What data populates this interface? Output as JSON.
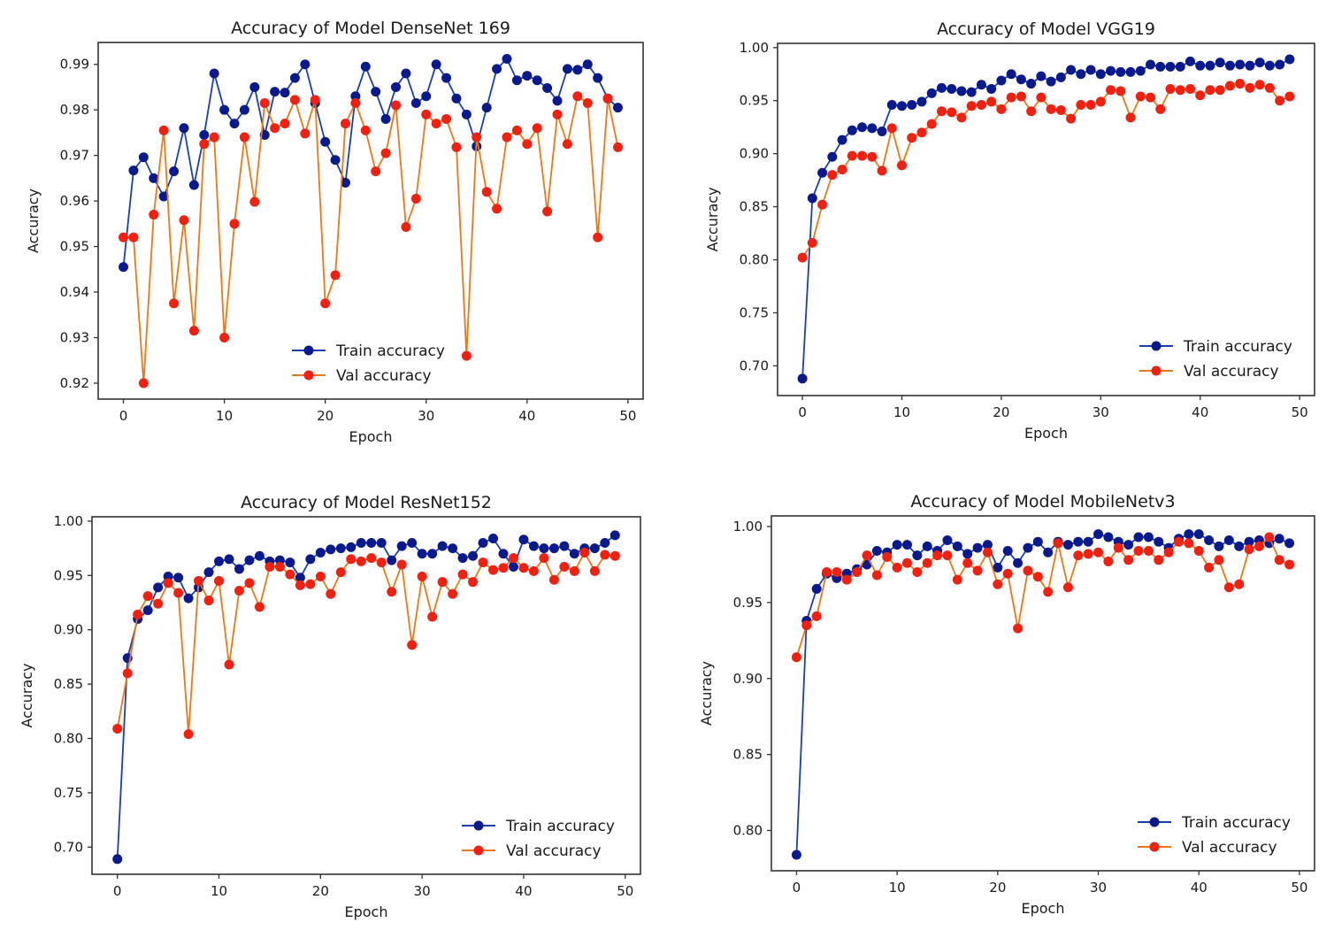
{
  "figure": {
    "colors": {
      "train_line": "#1a3fa8",
      "train_marker": "#0a1a8c",
      "val_line": "#e8781a",
      "val_marker": "#f22010"
    }
  },
  "chart_data": [
    {
      "type": "line",
      "title": "Accuracy of Model DenseNet 169",
      "xlabel": "Epoch",
      "ylabel": "Accuracy",
      "xlim": [
        -2.5,
        51.5
      ],
      "ylim": [
        0.9165,
        0.9948
      ],
      "xticks": [
        0,
        10,
        20,
        30,
        40,
        50
      ],
      "yticks": [
        0.92,
        0.93,
        0.94,
        0.95,
        0.96,
        0.97,
        0.98,
        0.99
      ],
      "ytick_labels": [
        "0.92",
        "0.93",
        "0.94",
        "0.95",
        "0.96",
        "0.97",
        "0.98",
        "0.99"
      ],
      "legend_position": "lower-center",
      "grid": false,
      "series": [
        {
          "name": "Train accuracy",
          "values": [
            0.9455,
            0.9667,
            0.9696,
            0.965,
            0.961,
            0.9665,
            0.976,
            0.9635,
            0.9745,
            0.988,
            0.98,
            0.977,
            0.98,
            0.985,
            0.9745,
            0.984,
            0.9838,
            0.987,
            0.99,
            0.9815,
            0.973,
            0.969,
            0.964,
            0.983,
            0.9895,
            0.984,
            0.978,
            0.985,
            0.988,
            0.9815,
            0.983,
            0.99,
            0.987,
            0.9825,
            0.979,
            0.972,
            0.9805,
            0.989,
            0.9912,
            0.9865,
            0.9875,
            0.9865,
            0.9848,
            0.982,
            0.989,
            0.9888,
            0.99,
            0.987,
            0.9825,
            0.9805
          ]
        },
        {
          "name": "Val accuracy",
          "values": [
            0.952,
            0.952,
            0.92,
            0.957,
            0.9755,
            0.9375,
            0.9558,
            0.9315,
            0.9725,
            0.974,
            0.93,
            0.955,
            0.974,
            0.9598,
            0.9815,
            0.976,
            0.977,
            0.9822,
            0.9748,
            0.9822,
            0.9375,
            0.9437,
            0.977,
            0.9815,
            0.9755,
            0.9665,
            0.9705,
            0.981,
            0.9543,
            0.9605,
            0.979,
            0.977,
            0.978,
            0.9718,
            0.926,
            0.974,
            0.962,
            0.9583,
            0.974,
            0.9755,
            0.9725,
            0.976,
            0.9577,
            0.979,
            0.9725,
            0.983,
            0.9815,
            0.952,
            0.9825,
            0.9718
          ]
        }
      ]
    },
    {
      "type": "line",
      "title": "Accuracy of Model VGG19",
      "xlabel": "Epoch",
      "ylabel": "Accuracy",
      "xlim": [
        -2.5,
        51.5
      ],
      "ylim": [
        0.672,
        1.004
      ],
      "xticks": [
        0,
        10,
        20,
        30,
        40,
        50
      ],
      "yticks": [
        0.7,
        0.75,
        0.8,
        0.85,
        0.9,
        0.95,
        1.0
      ],
      "ytick_labels": [
        "0.70",
        "0.75",
        "0.80",
        "0.85",
        "0.90",
        "0.95",
        "1.00"
      ],
      "legend_position": "lower-right",
      "grid": false,
      "series": [
        {
          "name": "Train accuracy",
          "values": [
            0.688,
            0.858,
            0.882,
            0.897,
            0.913,
            0.922,
            0.925,
            0.924,
            0.921,
            0.946,
            0.945,
            0.946,
            0.949,
            0.957,
            0.962,
            0.961,
            0.959,
            0.958,
            0.965,
            0.961,
            0.969,
            0.975,
            0.97,
            0.966,
            0.973,
            0.968,
            0.972,
            0.979,
            0.975,
            0.979,
            0.975,
            0.978,
            0.977,
            0.977,
            0.978,
            0.984,
            0.982,
            0.982,
            0.982,
            0.987,
            0.983,
            0.983,
            0.986,
            0.983,
            0.984,
            0.983,
            0.986,
            0.983,
            0.984,
            0.989
          ]
        },
        {
          "name": "Val accuracy",
          "values": [
            0.802,
            0.816,
            0.852,
            0.88,
            0.885,
            0.898,
            0.898,
            0.897,
            0.884,
            0.924,
            0.889,
            0.915,
            0.92,
            0.928,
            0.94,
            0.939,
            0.934,
            0.945,
            0.946,
            0.949,
            0.942,
            0.953,
            0.954,
            0.94,
            0.953,
            0.942,
            0.941,
            0.933,
            0.946,
            0.946,
            0.949,
            0.96,
            0.959,
            0.934,
            0.954,
            0.953,
            0.942,
            0.961,
            0.96,
            0.961,
            0.955,
            0.96,
            0.96,
            0.964,
            0.966,
            0.962,
            0.965,
            0.962,
            0.95,
            0.954
          ]
        }
      ]
    },
    {
      "type": "line",
      "title": "Accuracy of Model ResNet152",
      "xlabel": "Epoch",
      "ylabel": "Accuracy",
      "xlim": [
        -2.5,
        51.5
      ],
      "ylim": [
        0.675,
        1.004
      ],
      "xticks": [
        0,
        10,
        20,
        30,
        40,
        50
      ],
      "yticks": [
        0.7,
        0.75,
        0.8,
        0.85,
        0.9,
        0.95,
        1.0
      ],
      "ytick_labels": [
        "0.70",
        "0.75",
        "0.80",
        "0.85",
        "0.90",
        "0.95",
        "1.00"
      ],
      "legend_position": "lower-right",
      "grid": false,
      "series": [
        {
          "name": "Train accuracy",
          "values": [
            0.689,
            0.874,
            0.91,
            0.918,
            0.939,
            0.949,
            0.948,
            0.929,
            0.939,
            0.953,
            0.963,
            0.965,
            0.956,
            0.964,
            0.968,
            0.963,
            0.964,
            0.962,
            0.948,
            0.965,
            0.971,
            0.974,
            0.975,
            0.976,
            0.98,
            0.98,
            0.98,
            0.964,
            0.977,
            0.98,
            0.97,
            0.97,
            0.977,
            0.975,
            0.966,
            0.968,
            0.98,
            0.984,
            0.97,
            0.958,
            0.983,
            0.977,
            0.975,
            0.975,
            0.977,
            0.97,
            0.975,
            0.975,
            0.98,
            0.987
          ]
        },
        {
          "name": "Val accuracy",
          "values": [
            0.809,
            0.86,
            0.914,
            0.931,
            0.924,
            0.943,
            0.934,
            0.804,
            0.945,
            0.927,
            0.945,
            0.868,
            0.936,
            0.943,
            0.921,
            0.958,
            0.958,
            0.951,
            0.941,
            0.942,
            0.949,
            0.933,
            0.953,
            0.965,
            0.963,
            0.966,
            0.962,
            0.935,
            0.96,
            0.886,
            0.949,
            0.912,
            0.944,
            0.933,
            0.951,
            0.944,
            0.962,
            0.955,
            0.957,
            0.966,
            0.957,
            0.954,
            0.966,
            0.946,
            0.958,
            0.954,
            0.971,
            0.954,
            0.969,
            0.968
          ]
        }
      ]
    },
    {
      "type": "line",
      "title": "Accuracy of Model MobileNetv3",
      "xlabel": "Epoch",
      "ylabel": "Accuracy",
      "xlim": [
        -2.5,
        51.5
      ],
      "ylim": [
        0.7735,
        1.007
      ],
      "xticks": [
        0,
        10,
        20,
        30,
        40,
        50
      ],
      "yticks": [
        0.8,
        0.85,
        0.9,
        0.95,
        1.0
      ],
      "ytick_labels": [
        "0.80",
        "0.85",
        "0.90",
        "0.95",
        "1.00"
      ],
      "legend_position": "lower-right",
      "grid": false,
      "series": [
        {
          "name": "Train accuracy",
          "values": [
            0.784,
            0.938,
            0.959,
            0.969,
            0.966,
            0.969,
            0.972,
            0.975,
            0.984,
            0.983,
            0.988,
            0.988,
            0.981,
            0.987,
            0.984,
            0.991,
            0.987,
            0.982,
            0.986,
            0.988,
            0.973,
            0.984,
            0.976,
            0.986,
            0.99,
            0.983,
            0.99,
            0.988,
            0.99,
            0.99,
            0.995,
            0.993,
            0.99,
            0.988,
            0.993,
            0.993,
            0.99,
            0.986,
            0.992,
            0.995,
            0.995,
            0.991,
            0.987,
            0.991,
            0.987,
            0.99,
            0.991,
            0.989,
            0.992,
            0.989
          ]
        },
        {
          "name": "Val accuracy",
          "values": [
            0.914,
            0.935,
            0.941,
            0.97,
            0.97,
            0.965,
            0.97,
            0.981,
            0.968,
            0.98,
            0.973,
            0.976,
            0.97,
            0.976,
            0.981,
            0.981,
            0.965,
            0.976,
            0.971,
            0.983,
            0.962,
            0.969,
            0.933,
            0.971,
            0.967,
            0.957,
            0.989,
            0.96,
            0.981,
            0.982,
            0.983,
            0.977,
            0.986,
            0.978,
            0.984,
            0.984,
            0.978,
            0.983,
            0.99,
            0.989,
            0.984,
            0.973,
            0.978,
            0.96,
            0.962,
            0.985,
            0.987,
            0.993,
            0.978,
            0.975
          ]
        }
      ]
    }
  ]
}
